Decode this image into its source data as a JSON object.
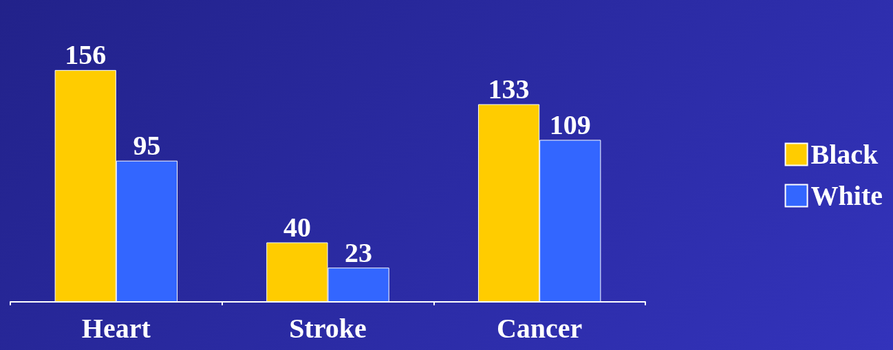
{
  "chart_data": {
    "type": "bar",
    "categories": [
      "Heart",
      "Stroke",
      "Cancer"
    ],
    "series": [
      {
        "name": "Black",
        "color": "#ffcc00",
        "values": [
          156,
          40,
          133
        ]
      },
      {
        "name": "White",
        "color": "#3366ff",
        "values": [
          95,
          23,
          109
        ]
      }
    ],
    "data_labels": true,
    "legend": "right",
    "grid": false
  }
}
